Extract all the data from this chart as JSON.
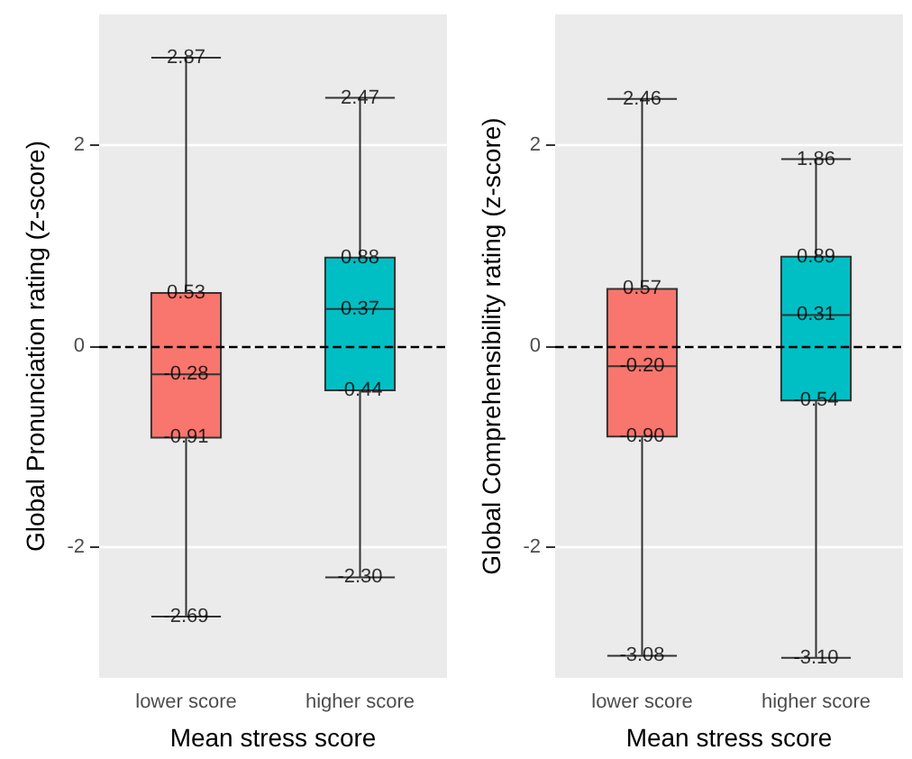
{
  "chart_data": [
    {
      "type": "box",
      "categories": [
        "lower score",
        "higher score"
      ],
      "xlabel": "Mean stress score",
      "ylabel": "Global Pronunciation rating (z-score)",
      "ylim": [
        -3.3,
        3.3
      ],
      "yticks": [
        -2,
        0,
        2
      ],
      "grid": "y",
      "colors": [
        "#f8766d",
        "#00bfc4"
      ],
      "boxes": [
        {
          "low": -2.69,
          "q1": -0.91,
          "median": -0.28,
          "q3": 0.53,
          "high": 2.87
        },
        {
          "low": -2.3,
          "q1": -0.44,
          "median": 0.37,
          "q3": 0.88,
          "high": 2.47
        }
      ],
      "annotations": [
        {
          "text": "2.87",
          "x": "lower score",
          "y": 2.87
        },
        {
          "text": "0.53",
          "x": "lower score",
          "y": 0.53
        },
        {
          "text": "-0.28",
          "x": "lower score",
          "y": -0.28
        },
        {
          "text": "-0.91",
          "x": "lower score",
          "y": -0.91
        },
        {
          "text": "-2.69",
          "x": "lower score",
          "y": -2.69
        },
        {
          "text": "2.47",
          "x": "higher score",
          "y": 2.47
        },
        {
          "text": "0.88",
          "x": "higher score",
          "y": 0.88
        },
        {
          "text": "0.37",
          "x": "higher score",
          "y": 0.37
        },
        {
          "text": "-0.44",
          "x": "higher score",
          "y": -0.44
        },
        {
          "text": "-2.30",
          "x": "higher score",
          "y": -2.3
        }
      ],
      "ref_lines": [
        {
          "axis": "y",
          "value": 0,
          "line_style": "dashed"
        }
      ]
    },
    {
      "type": "box",
      "categories": [
        "lower score",
        "higher score"
      ],
      "xlabel": "Mean stress score",
      "ylabel": "Global Comprehensibility rating (z-score)",
      "ylim": [
        -3.3,
        3.3
      ],
      "yticks": [
        -2,
        0,
        2
      ],
      "grid": "y",
      "colors": [
        "#f8766d",
        "#00bfc4"
      ],
      "boxes": [
        {
          "low": -3.08,
          "q1": -0.9,
          "median": -0.2,
          "q3": 0.57,
          "high": 2.46
        },
        {
          "low": -3.1,
          "q1": -0.54,
          "median": 0.31,
          "q3": 0.89,
          "high": 1.86
        }
      ],
      "annotations": [
        {
          "text": "2.46",
          "x": "lower score",
          "y": 2.46
        },
        {
          "text": "0.57",
          "x": "lower score",
          "y": 0.57
        },
        {
          "text": "-0.20",
          "x": "lower score",
          "y": -0.2
        },
        {
          "text": "-0.90",
          "x": "lower score",
          "y": -0.9
        },
        {
          "text": "-3.08",
          "x": "lower score",
          "y": -3.08
        },
        {
          "text": "1.86",
          "x": "higher score",
          "y": 1.86
        },
        {
          "text": "0.89",
          "x": "higher score",
          "y": 0.89
        },
        {
          "text": "0.31",
          "x": "higher score",
          "y": 0.31
        },
        {
          "text": "-0.54",
          "x": "higher score",
          "y": -0.54
        },
        {
          "text": "-3.10",
          "x": "higher score",
          "y": -3.1
        }
      ],
      "ref_lines": [
        {
          "axis": "y",
          "value": 0,
          "line_style": "dashed"
        }
      ]
    }
  ]
}
